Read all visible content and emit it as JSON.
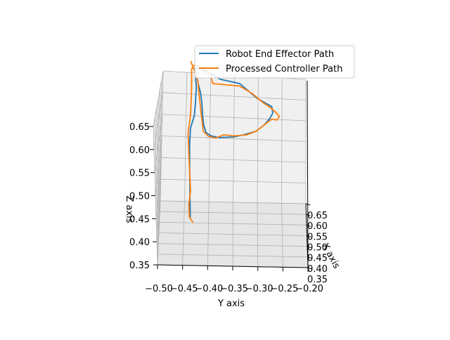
{
  "chart_data": {
    "type": "line",
    "projection": "3d",
    "title": "",
    "xlabel": "X axis",
    "ylabel": "Y axis",
    "zlabel": "Z axis",
    "xlim": [
      0.35,
      0.65
    ],
    "ylim": [
      -0.2,
      -0.5
    ],
    "zlim": [
      0.35,
      0.65
    ],
    "x_ticks": [
      "0.35",
      "0.40",
      "0.45",
      "0.50",
      "0.55",
      "0.60",
      "0.65"
    ],
    "y_ticks": [
      "−0.20",
      "−0.25",
      "−0.30",
      "−0.35",
      "−0.40",
      "−0.45",
      "−0.50"
    ],
    "z_ticks": [
      "0.35",
      "0.40",
      "0.45",
      "0.50",
      "0.55",
      "0.60",
      "0.65"
    ],
    "grid": true,
    "legend_position": "top-right",
    "series": [
      {
        "name": "Robot End Effector Path",
        "color": "#1f77b4",
        "points": [
          [
            0.44,
            -0.435,
            0.41
          ],
          [
            0.47,
            -0.436,
            0.45
          ],
          [
            0.5,
            -0.437,
            0.49
          ],
          [
            0.53,
            -0.438,
            0.53
          ],
          [
            0.55,
            -0.437,
            0.56
          ],
          [
            0.57,
            -0.43,
            0.58
          ],
          [
            0.58,
            -0.428,
            0.61
          ],
          [
            0.585,
            -0.427,
            0.64
          ],
          [
            0.585,
            -0.429,
            0.665
          ],
          [
            0.575,
            -0.43,
            0.685
          ],
          [
            0.55,
            -0.415,
            0.688
          ],
          [
            0.53,
            -0.395,
            0.682
          ],
          [
            0.52,
            -0.375,
            0.67
          ],
          [
            0.5,
            -0.335,
            0.66
          ],
          [
            0.46,
            -0.3,
            0.632
          ],
          [
            0.43,
            -0.27,
            0.615
          ],
          [
            0.41,
            -0.268,
            0.605
          ],
          [
            0.39,
            -0.275,
            0.598
          ],
          [
            0.375,
            -0.285,
            0.592
          ],
          [
            0.37,
            -0.3,
            0.585
          ],
          [
            0.37,
            -0.325,
            0.583
          ],
          [
            0.37,
            -0.345,
            0.583
          ],
          [
            0.37,
            -0.375,
            0.588
          ],
          [
            0.38,
            -0.39,
            0.592
          ],
          [
            0.4,
            -0.4,
            0.595
          ],
          [
            0.42,
            -0.405,
            0.605
          ],
          [
            0.44,
            -0.408,
            0.62
          ],
          [
            0.46,
            -0.41,
            0.64
          ],
          [
            0.48,
            -0.413,
            0.655
          ],
          [
            0.5,
            -0.418,
            0.667
          ],
          [
            0.52,
            -0.422,
            0.677
          ],
          [
            0.55,
            -0.428,
            0.685
          ]
        ]
      },
      {
        "name": "Processed Controller Path",
        "color": "#ff7f0e",
        "points": [
          [
            0.43,
            -0.43,
            0.405
          ],
          [
            0.44,
            -0.437,
            0.412
          ],
          [
            0.46,
            -0.438,
            0.43
          ],
          [
            0.48,
            -0.435,
            0.45
          ],
          [
            0.5,
            -0.437,
            0.48
          ],
          [
            0.53,
            -0.44,
            0.52
          ],
          [
            0.55,
            -0.442,
            0.55
          ],
          [
            0.575,
            -0.438,
            0.58
          ],
          [
            0.585,
            -0.437,
            0.62
          ],
          [
            0.59,
            -0.437,
            0.66
          ],
          [
            0.585,
            -0.437,
            0.68
          ],
          [
            0.58,
            -0.432,
            0.69
          ],
          [
            0.56,
            -0.42,
            0.692
          ],
          [
            0.54,
            -0.405,
            0.688
          ],
          [
            0.525,
            -0.395,
            0.68
          ],
          [
            0.51,
            -0.39,
            0.665
          ],
          [
            0.5,
            -0.335,
            0.655
          ],
          [
            0.48,
            -0.31,
            0.64
          ],
          [
            0.45,
            -0.29,
            0.625
          ],
          [
            0.43,
            -0.272,
            0.613
          ],
          [
            0.415,
            -0.262,
            0.605
          ],
          [
            0.4,
            -0.255,
            0.598
          ],
          [
            0.39,
            -0.26,
            0.594
          ],
          [
            0.385,
            -0.27,
            0.598
          ],
          [
            0.375,
            -0.285,
            0.592
          ],
          [
            0.37,
            -0.3,
            0.585
          ],
          [
            0.37,
            -0.32,
            0.582
          ],
          [
            0.37,
            -0.345,
            0.585
          ],
          [
            0.375,
            -0.365,
            0.59
          ],
          [
            0.37,
            -0.38,
            0.588
          ],
          [
            0.38,
            -0.395,
            0.592
          ],
          [
            0.4,
            -0.405,
            0.598
          ],
          [
            0.42,
            -0.408,
            0.61
          ],
          [
            0.45,
            -0.412,
            0.63
          ],
          [
            0.47,
            -0.415,
            0.648
          ],
          [
            0.49,
            -0.418,
            0.663
          ],
          [
            0.51,
            -0.42,
            0.673
          ],
          [
            0.53,
            -0.425,
            0.68
          ],
          [
            0.55,
            -0.43,
            0.688
          ],
          [
            0.575,
            -0.438,
            0.7
          ]
        ]
      }
    ]
  }
}
